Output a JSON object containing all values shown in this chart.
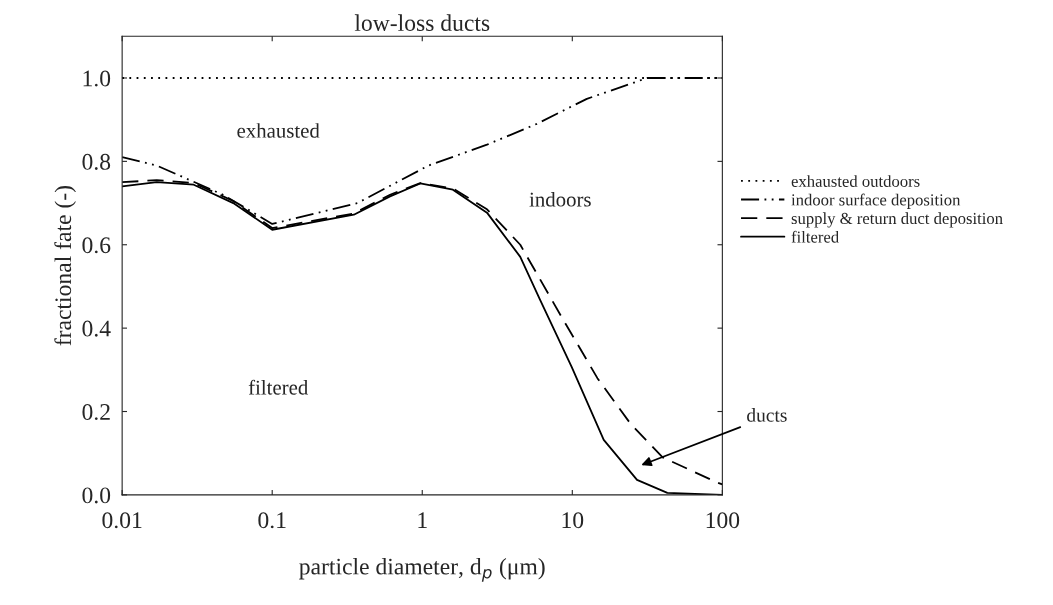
{
  "chart_data": {
    "type": "line",
    "title": "low-loss ducts",
    "xlabel": "particle diameter, d$_{p}$ (μm)",
    "ylabel": "fractional fate (-)",
    "log": "x",
    "xlim": [
      0.01,
      100
    ],
    "xticks": [
      0.01,
      0.1,
      1,
      10,
      100
    ],
    "ylim": [
      0.0,
      1.1
    ],
    "yticks": [
      {
        "value": 0,
        "label": "0.0"
      },
      0.2,
      0.4,
      0.6,
      0.8,
      {
        "value": 1,
        "label": "1.0"
      }
    ],
    "grid": false,
    "legend": "right",
    "marker": "none",
    "series": [
      {
        "name": "exhausted outdoors",
        "color": "#000000",
        "line_style": "dotted",
        "x": [
          0.01,
          100
        ],
        "values": [
          1.0,
          1.0
        ]
      },
      {
        "name": "indoor surface deposition",
        "color": "#000000",
        "line_style": "dashdot",
        "x": [
          0.01,
          0.017,
          0.047,
          0.1,
          0.37,
          1.1,
          2.7,
          5.8,
          12.5,
          31.6,
          100
        ],
        "values": [
          0.81,
          0.79,
          0.72,
          0.65,
          0.7,
          0.79,
          0.84,
          0.89,
          0.95,
          1.0,
          1.0
        ]
      },
      {
        "name": "supply & return duct deposition",
        "color": "#000000",
        "line_style": "dashed",
        "x": [
          0.01,
          0.017,
          0.03,
          0.055,
          0.1,
          0.35,
          0.61,
          0.97,
          1.6,
          2.7,
          4.5,
          8.7,
          14.7,
          24.5,
          40,
          92,
          100
        ],
        "values": [
          0.75,
          0.755,
          0.748,
          0.705,
          0.64,
          0.675,
          0.72,
          0.748,
          0.735,
          0.685,
          0.6,
          0.42,
          0.28,
          0.17,
          0.09,
          0.03,
          0.025
        ]
      },
      {
        "name": "filtered",
        "color": "#000000",
        "line_style": "solid",
        "x": [
          0.01,
          0.017,
          0.03,
          0.055,
          0.1,
          0.35,
          0.61,
          0.97,
          1.6,
          2.7,
          4.5,
          6.1,
          9.9,
          16.2,
          27,
          43,
          100
        ],
        "values": [
          0.74,
          0.75,
          0.744,
          0.7,
          0.636,
          0.672,
          0.716,
          0.747,
          0.732,
          0.677,
          0.571,
          0.468,
          0.307,
          0.132,
          0.036,
          0.005,
          0.0
        ]
      }
    ],
    "annotations": [
      "exhausted",
      "indoors",
      "filtered",
      "ducts"
    ]
  }
}
